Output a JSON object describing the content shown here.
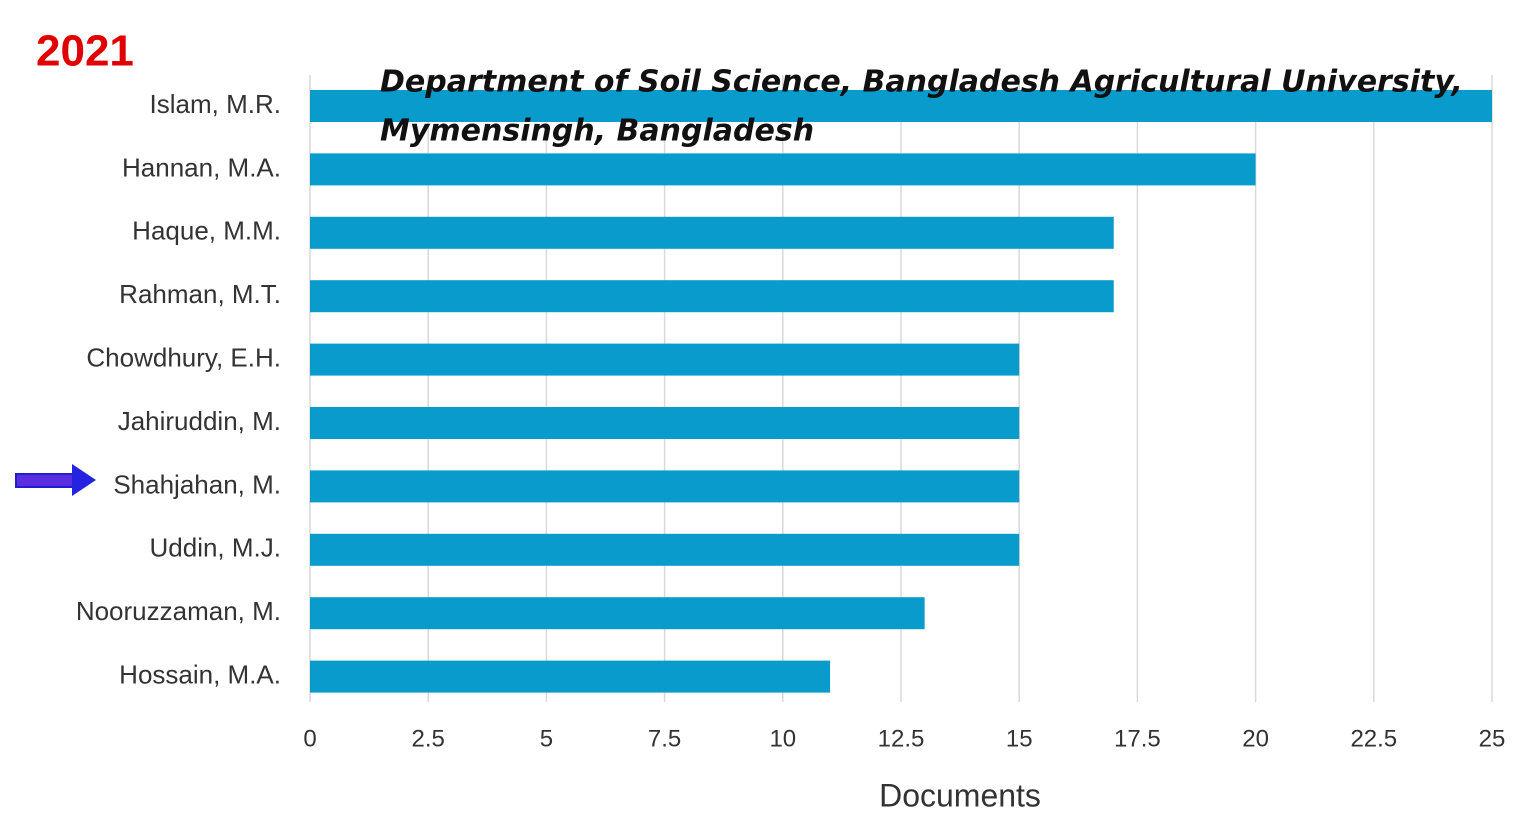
{
  "chart_data": {
    "type": "bar",
    "orientation": "horizontal",
    "title": "2021",
    "annotation": [
      "Department of Soil Science, Bangladesh Agricultural University,",
      "Mymensingh, Bangladesh"
    ],
    "categories": [
      "Islam, M.R.",
      "Hannan, M.A.",
      "Haque, M.M.",
      "Rahman, M.T.",
      "Chowdhury, E.H.",
      "Jahiruddin, M.",
      "Shahjahan, M.",
      "Uddin, M.J.",
      "Nooruzzaman, M.",
      "Hossain, M.A."
    ],
    "values": [
      25,
      20,
      17,
      17,
      15,
      15,
      15,
      15,
      13,
      11
    ],
    "color": "#0a9bcd",
    "xlabel": "Documents",
    "xlim": [
      0,
      25
    ],
    "xticks": [
      0,
      2.5,
      5,
      7.5,
      10,
      12.5,
      15,
      17.5,
      20,
      22.5,
      25
    ],
    "grid": true
  }
}
